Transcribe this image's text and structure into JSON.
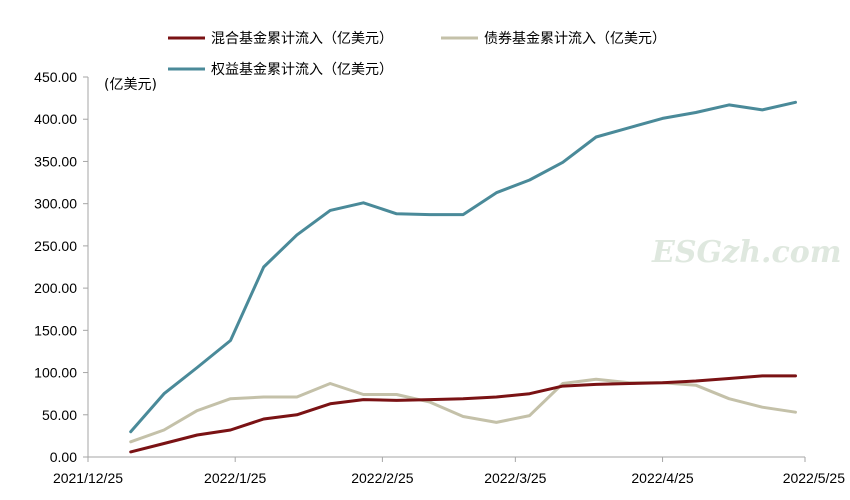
{
  "chart_data": {
    "type": "line",
    "unit_label": "(亿美元)",
    "watermark": "ESGzh.com",
    "ylim": [
      0,
      450
    ],
    "yticks": [
      "0.00",
      "50.00",
      "100.00",
      "150.00",
      "200.00",
      "250.00",
      "300.00",
      "350.00",
      "400.00",
      "450.00"
    ],
    "xlim": [
      "2021-12-25",
      "2022-05-25"
    ],
    "xticks": [
      {
        "date": "2021-12-25",
        "label": "2021/12/25"
      },
      {
        "date": "2022-01-25",
        "label": "2022/1/25"
      },
      {
        "date": "2022-02-25",
        "label": "2022/2/25"
      },
      {
        "date": "2022-03-25",
        "label": "2022/3/25"
      },
      {
        "date": "2022-04-25",
        "label": "2022/4/25"
      },
      {
        "date": "2022-05-25",
        "label": "2022/5/25"
      }
    ],
    "x": [
      "2022-01-03",
      "2022-01-10",
      "2022-01-17",
      "2022-01-24",
      "2022-01-31",
      "2022-02-07",
      "2022-02-14",
      "2022-02-21",
      "2022-02-28",
      "2022-03-07",
      "2022-03-14",
      "2022-03-21",
      "2022-03-28",
      "2022-04-04",
      "2022-04-11",
      "2022-04-18",
      "2022-04-25",
      "2022-05-02",
      "2022-05-09",
      "2022-05-16",
      "2022-05-23"
    ],
    "grid": false,
    "legend_position": "top",
    "series": [
      {
        "name": "混合基金累计流入（亿美元）",
        "color": "#7a1214",
        "values": [
          6,
          16,
          26,
          32,
          45,
          50,
          63,
          68,
          67,
          68,
          69,
          71,
          75,
          84,
          86,
          87,
          88,
          90,
          93,
          96,
          96
        ]
      },
      {
        "name": "债券基金累计流入（亿美元）",
        "color": "#c4c1a9",
        "values": [
          18,
          32,
          55,
          69,
          71,
          71,
          87,
          74,
          74,
          65,
          48,
          41,
          49,
          87,
          92,
          88,
          88,
          85,
          69,
          59,
          53
        ]
      },
      {
        "name": "权益基金累计流入（亿美元）",
        "color": "#4a8a99",
        "values": [
          30,
          75,
          106,
          138,
          225,
          263,
          292,
          301,
          288,
          287,
          287,
          313,
          328,
          349,
          379,
          390,
          401,
          408,
          417,
          411,
          420
        ]
      }
    ]
  }
}
